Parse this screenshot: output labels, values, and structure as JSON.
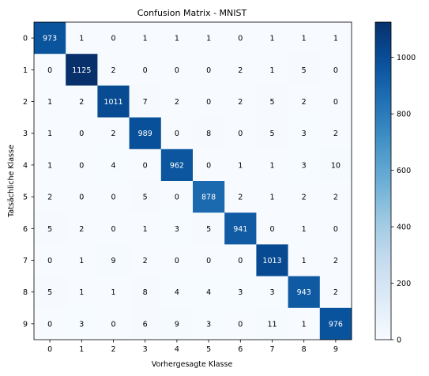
{
  "chart_data": {
    "type": "heatmap",
    "title": "Confusion Matrix - MNIST",
    "xlabel": "Vorhergesagte Klasse",
    "ylabel": "Tatsächliche Klasse",
    "x_categories": [
      "0",
      "1",
      "2",
      "3",
      "4",
      "5",
      "6",
      "7",
      "8",
      "9"
    ],
    "y_categories": [
      "0",
      "1",
      "2",
      "3",
      "4",
      "5",
      "6",
      "7",
      "8",
      "9"
    ],
    "values": [
      [
        973,
        1,
        0,
        1,
        1,
        1,
        0,
        1,
        1,
        1
      ],
      [
        0,
        1125,
        2,
        0,
        0,
        0,
        2,
        1,
        5,
        0
      ],
      [
        1,
        2,
        1011,
        7,
        2,
        0,
        2,
        5,
        2,
        0
      ],
      [
        1,
        0,
        2,
        989,
        0,
        8,
        0,
        5,
        3,
        2
      ],
      [
        1,
        0,
        4,
        0,
        962,
        0,
        1,
        1,
        3,
        10
      ],
      [
        2,
        0,
        0,
        5,
        0,
        878,
        2,
        1,
        2,
        2
      ],
      [
        5,
        2,
        0,
        1,
        3,
        5,
        941,
        0,
        1,
        0
      ],
      [
        0,
        1,
        9,
        2,
        0,
        0,
        0,
        1013,
        1,
        2
      ],
      [
        5,
        1,
        1,
        8,
        4,
        4,
        3,
        3,
        943,
        2
      ],
      [
        0,
        3,
        0,
        6,
        9,
        3,
        0,
        11,
        1,
        976
      ]
    ],
    "colormap": "Blues",
    "color_low": "#f7fbff",
    "color_high": "#08306b",
    "vmin": 0,
    "vmax": 1125,
    "colorbar_ticks": [
      0,
      200,
      400,
      600,
      800,
      1000
    ],
    "grid": false,
    "legend": "colorbar-right"
  }
}
